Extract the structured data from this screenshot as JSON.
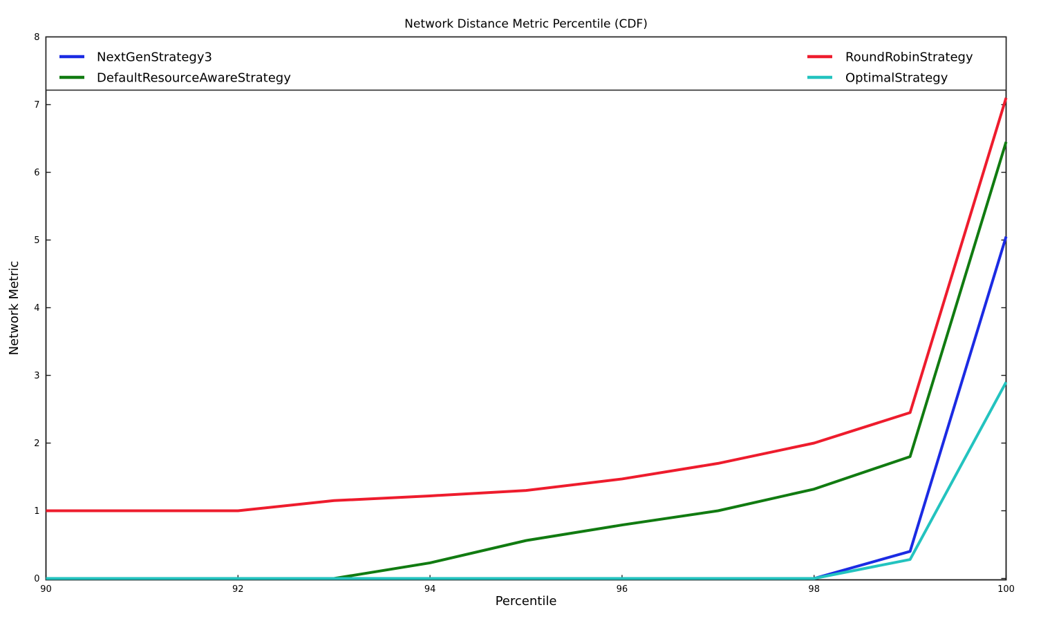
{
  "figure": {
    "background": "#ffffff",
    "spine_color": "#1a1a1a",
    "legend_border_color": "#2a2a2a"
  },
  "chart_data": {
    "type": "line",
    "title": "Network Distance Metric Percentile (CDF)",
    "xlabel": "Percentile",
    "ylabel": "Network Metric",
    "xlim": [
      90,
      100
    ],
    "ylim": [
      0,
      8
    ],
    "xticks": [
      90,
      92,
      94,
      96,
      98,
      100
    ],
    "yticks": [
      0,
      1,
      2,
      3,
      4,
      5,
      6,
      7,
      8
    ],
    "grid": false,
    "legend_position": "top-inside, full plot width, two columns",
    "x": [
      90,
      91,
      92,
      93,
      94,
      95,
      96,
      97,
      98,
      99,
      100
    ],
    "series": [
      {
        "name": "NextGenStrategy3",
        "color": "#1b2be3",
        "values": [
          0,
          0,
          0,
          0,
          0,
          0,
          0,
          0,
          0,
          0.4,
          5.05
        ]
      },
      {
        "name": "DefaultResourceAwareStrategy",
        "color": "#117b11",
        "values": [
          0,
          0,
          0,
          0,
          0.23,
          0.56,
          0.79,
          1.0,
          1.32,
          1.8,
          6.45
        ]
      },
      {
        "name": "RoundRobinStrategy",
        "color": "#ee1c2d",
        "values": [
          1.0,
          1.0,
          1.0,
          1.15,
          1.22,
          1.3,
          1.47,
          1.7,
          2.0,
          2.45,
          7.1
        ]
      },
      {
        "name": "OptimalStrategy",
        "color": "#23c3bf",
        "values": [
          0,
          0,
          0,
          0,
          0,
          0,
          0,
          0,
          0,
          0.28,
          2.9
        ]
      }
    ],
    "draw_order": [
      "NextGenStrategy3",
      "DefaultResourceAwareStrategy",
      "RoundRobinStrategy",
      "OptimalStrategy"
    ],
    "legend_columns": [
      [
        "NextGenStrategy3",
        "DefaultResourceAwareStrategy"
      ],
      [
        "RoundRobinStrategy",
        "OptimalStrategy"
      ]
    ]
  }
}
